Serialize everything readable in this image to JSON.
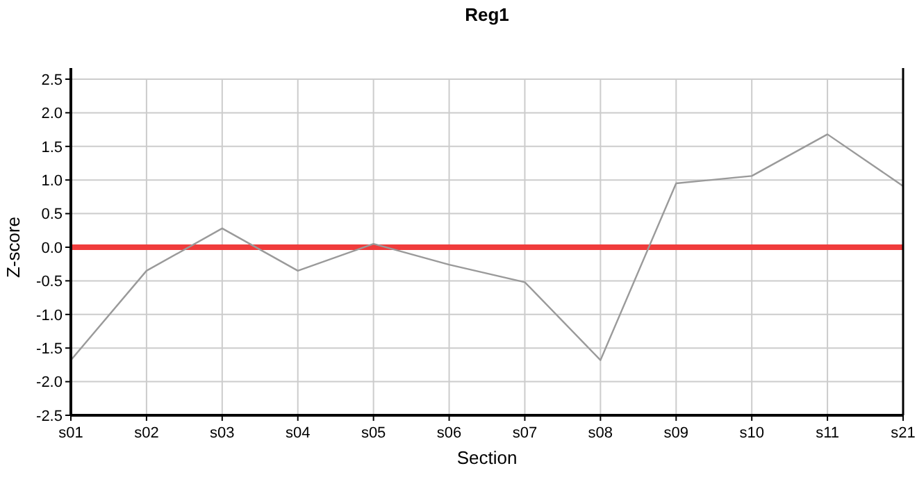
{
  "chart_data": {
    "type": "line",
    "title": "Reg1",
    "xlabel": "Section",
    "ylabel": "Z-score",
    "categories": [
      "s01",
      "s02",
      "s03",
      "s04",
      "s05",
      "s06",
      "s07",
      "s08",
      "s09",
      "s10",
      "s11",
      "s21"
    ],
    "series": [
      {
        "color": "#9a9a9a",
        "values": [
          -1.68,
          -0.35,
          0.28,
          -0.35,
          0.05,
          -0.26,
          -0.52,
          -1.68,
          0.95,
          1.06,
          1.68,
          0.91
        ]
      }
    ],
    "ylim": [
      -2.5,
      2.5
    ],
    "yticks": [
      {
        "value": -2.5,
        "label": "-2.5"
      },
      {
        "value": -2,
        "label": "-2.0"
      },
      {
        "value": -1.5,
        "label": "-1.5"
      },
      {
        "value": -1,
        "label": "-1.0"
      },
      {
        "value": -0.5,
        "label": "-0.5"
      },
      {
        "value": 0,
        "label": "0.0"
      },
      {
        "value": 0.5,
        "label": "0.5"
      },
      {
        "value": 1,
        "label": "1.0"
      },
      {
        "value": 1.5,
        "label": "1.5"
      },
      {
        "value": 2,
        "label": "2.0"
      },
      {
        "value": 2.5,
        "label": "2.5"
      }
    ],
    "grid": true,
    "ref_lines": [
      {
        "axis": "y",
        "value": 0,
        "color": "#f03c3c"
      }
    ]
  }
}
